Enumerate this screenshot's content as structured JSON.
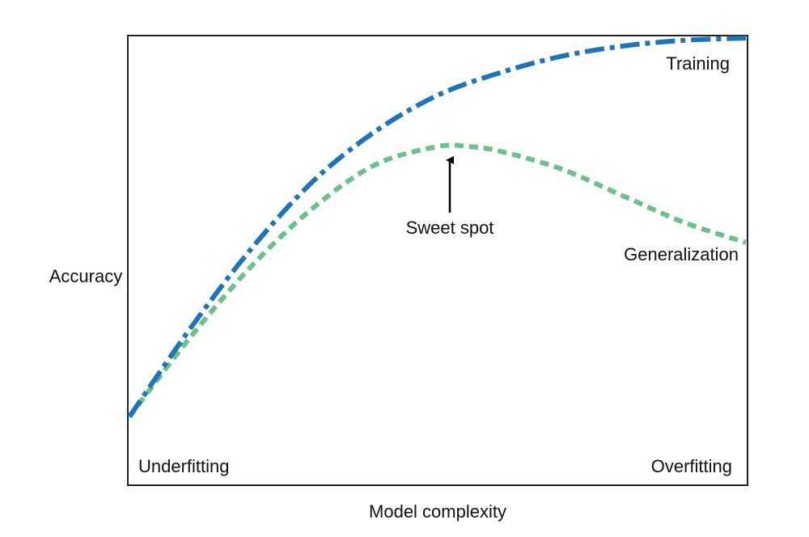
{
  "chart_data": {
    "type": "line",
    "xlabel": "Model complexity",
    "ylabel": "Accuracy",
    "xlim": [
      0,
      1
    ],
    "ylim": [
      0,
      1
    ],
    "series": [
      {
        "name": "Training",
        "style": "dash-dot",
        "color": "#1f73b7",
        "x": [
          0,
          0.1,
          0.2,
          0.3,
          0.4,
          0.5,
          0.6,
          0.7,
          0.8,
          0.9,
          1.0
        ],
        "y": [
          0.15,
          0.35,
          0.53,
          0.68,
          0.79,
          0.87,
          0.92,
          0.957,
          0.98,
          0.993,
          0.998
        ]
      },
      {
        "name": "Generalization",
        "style": "dashed",
        "color": "#6cc08b",
        "x": [
          0,
          0.1,
          0.2,
          0.3,
          0.4,
          0.5,
          0.55,
          0.6,
          0.7,
          0.8,
          0.9,
          1.0
        ],
        "y": [
          0.15,
          0.33,
          0.49,
          0.62,
          0.715,
          0.755,
          0.755,
          0.745,
          0.705,
          0.645,
          0.585,
          0.54
        ]
      }
    ],
    "annotations": {
      "sweet_spot": {
        "label": "Sweet spot",
        "x": 0.52,
        "y": 0.755
      },
      "underfitting": "Underfitting",
      "overfitting": "Overfitting"
    }
  }
}
